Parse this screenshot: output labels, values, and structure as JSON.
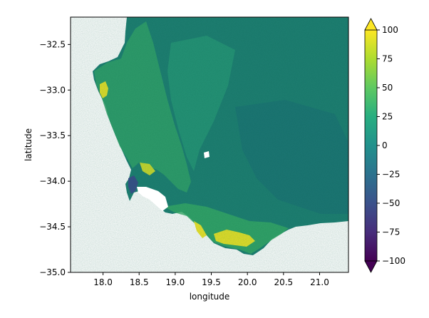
{
  "chart_data": {
    "type": "heatmap",
    "title": "",
    "xlabel": "longitude",
    "ylabel": "latitude",
    "xlim": [
      17.55,
      21.4
    ],
    "ylim": [
      -35.0,
      -32.2
    ],
    "x_ticks": [
      18.0,
      18.5,
      19.0,
      19.5,
      20.0,
      20.5,
      21.0
    ],
    "x_tick_labels": [
      "18.0",
      "18.5",
      "19.0",
      "19.5",
      "20.0",
      "20.5",
      "21.0"
    ],
    "y_ticks": [
      -32.5,
      -33.0,
      -33.5,
      -34.0,
      -34.5,
      -35.0
    ],
    "y_tick_labels": [
      "−32.5",
      "−33.0",
      "−33.5",
      "−34.0",
      "−34.5",
      "−35.0"
    ],
    "colorbar": {
      "colormap": "viridis",
      "vmin": -100,
      "vmax": 100,
      "extend": "both",
      "ticks": [
        100,
        75,
        50,
        25,
        0,
        -25,
        -50,
        -75,
        -100
      ],
      "tick_labels": [
        "100",
        "75",
        "50",
        "25",
        "0",
        "−25",
        "−50",
        "−75",
        "−100"
      ]
    },
    "value_regions": [
      {
        "region": "interior and eastern plains",
        "approx_value": 0
      },
      {
        "region": "western coastal belt",
        "approx_value": 35
      },
      {
        "region": "south coast near 19.5–20.0 lon",
        "approx_value": 95
      },
      {
        "region": "west coast near 18.0 lon, −33.0 lat",
        "approx_value": 90
      }
    ]
  }
}
